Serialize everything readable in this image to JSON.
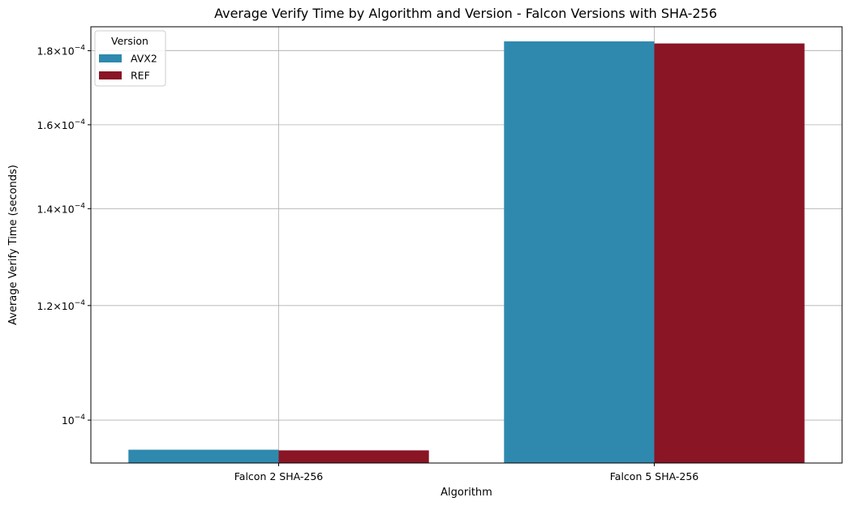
{
  "chart_data": {
    "type": "bar",
    "title": "Average Verify Time by Algorithm and Version - Falcon Versions with SHA-256",
    "xlabel": "Algorithm",
    "ylabel": "Average Verify Time (seconds)",
    "y_scale": "log",
    "ylim": [
      9.34e-05,
      0.000187
    ],
    "grid": true,
    "legend": {
      "title": "Version",
      "placement": "top-left"
    },
    "categories": [
      "Falcon 2 SHA-256",
      "Falcon 5 SHA-256"
    ],
    "series": [
      {
        "name": "AVX2",
        "color": "#2f89ae",
        "values": [
          9.54e-05,
          0.0001827
        ]
      },
      {
        "name": "REF",
        "color": "#891525",
        "values": [
          9.53e-05,
          0.0001821
        ]
      }
    ],
    "yticks": [
      {
        "value": 0.0001,
        "mantissa": "",
        "exp": "−4"
      },
      {
        "value": 0.00012,
        "mantissa": "1.2",
        "exp": "−4"
      },
      {
        "value": 0.00014,
        "mantissa": "1.4",
        "exp": "−4"
      },
      {
        "value": 0.00016,
        "mantissa": "1.6",
        "exp": "−4"
      },
      {
        "value": 0.00018,
        "mantissa": "1.8",
        "exp": "−4"
      }
    ]
  }
}
